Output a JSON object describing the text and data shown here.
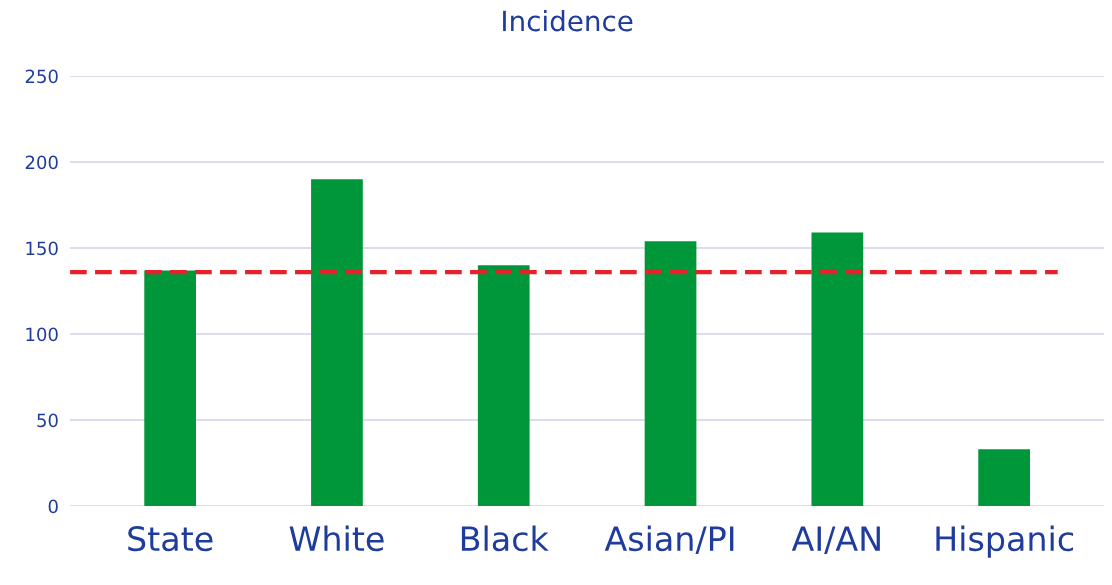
{
  "chart_data": {
    "type": "bar",
    "title": "Incidence",
    "categories": [
      "State",
      "White",
      "Black",
      "Asian/PI",
      "AI/AN",
      "Hispanic"
    ],
    "values": [
      137,
      190,
      140,
      154,
      159,
      33
    ],
    "color": "#00963a",
    "ylim": [
      0,
      250
    ],
    "yticks": [
      0,
      50,
      100,
      150,
      200,
      250
    ],
    "grid": "y",
    "ref_lines": [
      {
        "axis": "y",
        "value": 136,
        "color": "#e8202a",
        "line_style": "dashed"
      }
    ]
  }
}
